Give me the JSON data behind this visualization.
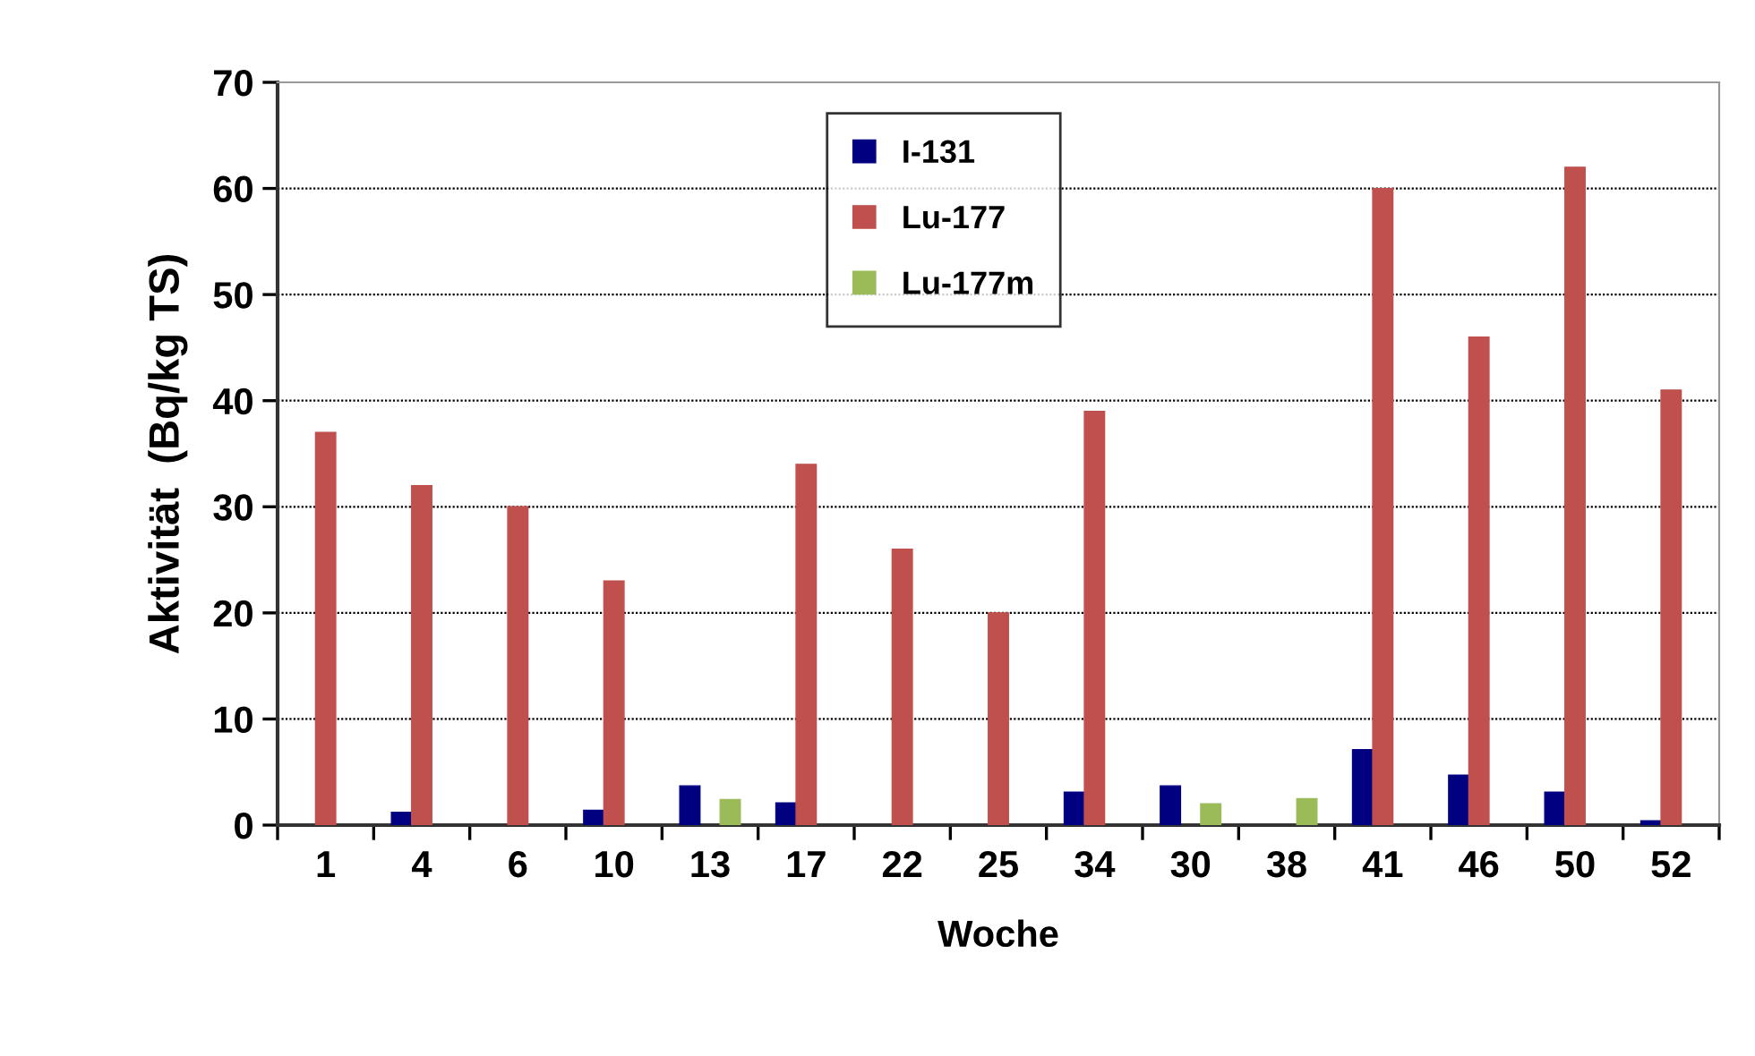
{
  "chart_data": {
    "type": "bar",
    "xlabel": "Woche",
    "ylabel": "Aktivität  (Bq/kg TS)",
    "categories": [
      "1",
      "4",
      "6",
      "10",
      "13",
      "17",
      "22",
      "25",
      "34",
      "30",
      "38",
      "41",
      "46",
      "50",
      "52"
    ],
    "series": [
      {
        "name": "I-131",
        "color": "#000080",
        "values": [
          null,
          1.2,
          null,
          1.4,
          3.7,
          2.1,
          null,
          null,
          3.1,
          3.7,
          null,
          7.1,
          4.7,
          3.1,
          0.4
        ]
      },
      {
        "name": "Lu-177",
        "color": "#c0504d",
        "values": [
          37,
          32,
          30,
          23,
          null,
          34,
          26,
          20,
          39,
          null,
          null,
          60,
          46,
          62,
          41
        ]
      },
      {
        "name": "Lu-177m",
        "color": "#9bbb59",
        "values": [
          null,
          null,
          null,
          null,
          2.4,
          null,
          null,
          null,
          null,
          2.0,
          2.5,
          null,
          null,
          null,
          null
        ]
      }
    ],
    "ylim": [
      0,
      70
    ],
    "yticks": [
      0,
      10,
      20,
      30,
      40,
      50,
      60,
      70
    ],
    "grid": "y",
    "legend": "top"
  }
}
